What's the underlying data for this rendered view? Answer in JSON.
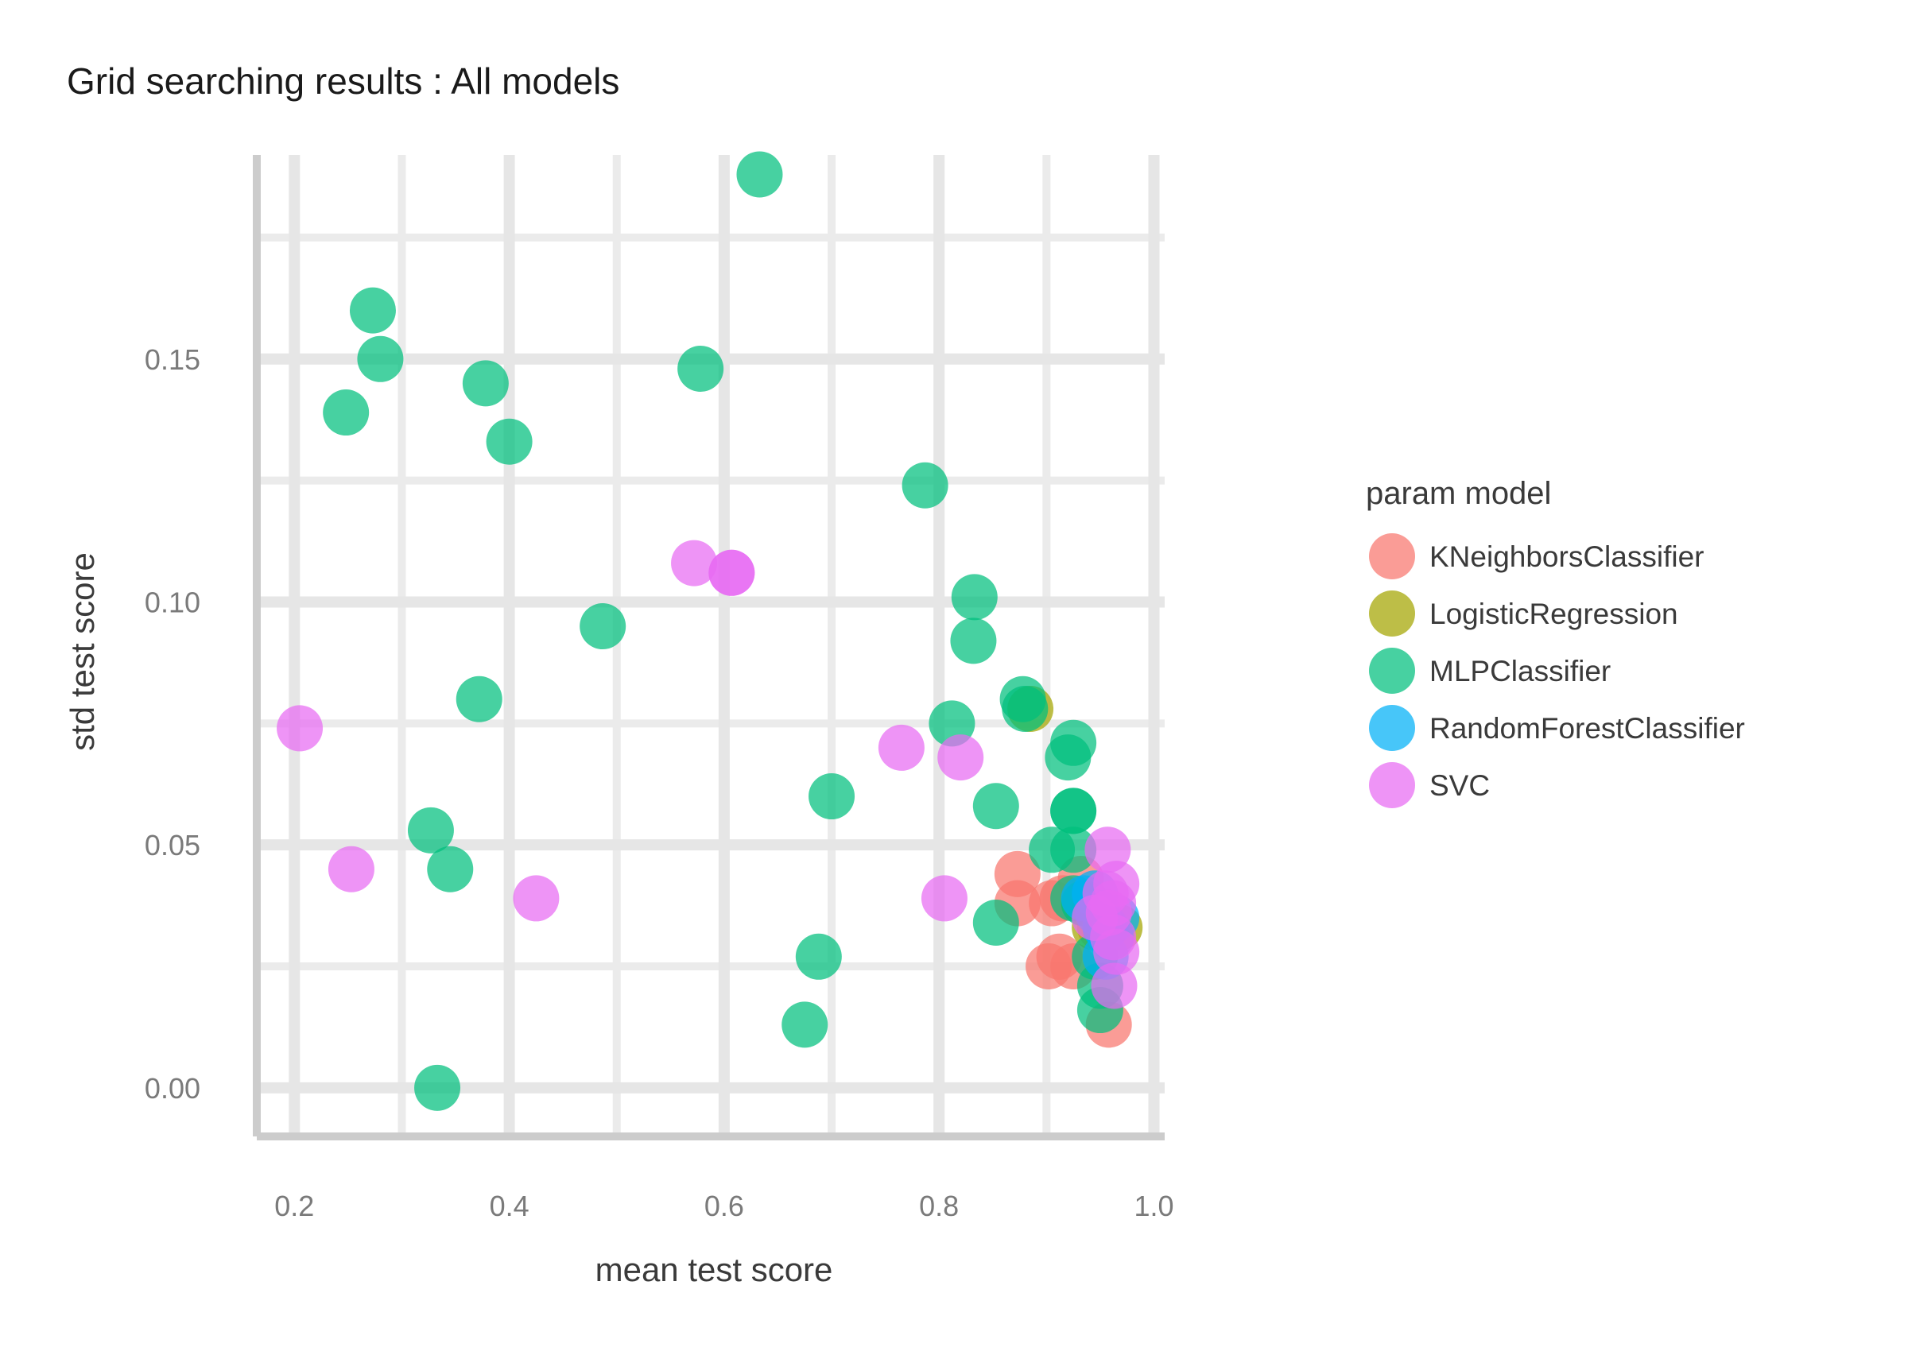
{
  "chart_data": {
    "type": "scatter",
    "title": "Grid searching results :  All models",
    "xlabel": "mean test score",
    "ylabel": "std test score",
    "xlim": [
      0.165,
      1.01
    ],
    "ylim": [
      -0.01,
      0.192
    ],
    "x_ticks": [
      0.2,
      0.4,
      0.6,
      0.8,
      1.0
    ],
    "x_tick_labels": [
      "0.2",
      "0.4",
      "0.6",
      "0.8",
      "1.0"
    ],
    "y_ticks": [
      0.0,
      0.05,
      0.1,
      0.15
    ],
    "y_tick_labels": [
      "0.00",
      "0.05",
      "0.10",
      "0.15"
    ],
    "grid": true,
    "legend": {
      "title": "param model",
      "position": "right"
    },
    "series": [
      {
        "name": "KNeighborsClassifier",
        "color": "#F8766D",
        "points": [
          [
            0.873,
            0.044
          ],
          [
            0.873,
            0.038
          ],
          [
            0.905,
            0.038
          ],
          [
            0.912,
            0.027
          ],
          [
            0.902,
            0.025
          ],
          [
            0.925,
            0.025
          ],
          [
            0.958,
            0.013
          ],
          [
            0.932,
            0.043
          ],
          [
            0.915,
            0.039
          ],
          [
            0.95,
            0.033
          ]
        ]
      },
      {
        "name": "LogisticRegression",
        "color": "#A3A500",
        "points": [
          [
            0.885,
            0.078
          ],
          [
            0.945,
            0.033
          ],
          [
            0.968,
            0.033
          ]
        ]
      },
      {
        "name": "MLPClassifier",
        "color": "#00BF7D",
        "points": [
          [
            0.633,
            0.188
          ],
          [
            0.273,
            0.16
          ],
          [
            0.28,
            0.15
          ],
          [
            0.378,
            0.145
          ],
          [
            0.248,
            0.139
          ],
          [
            0.578,
            0.148
          ],
          [
            0.4,
            0.133
          ],
          [
            0.787,
            0.124
          ],
          [
            0.833,
            0.101
          ],
          [
            0.832,
            0.092
          ],
          [
            0.487,
            0.095
          ],
          [
            0.878,
            0.08
          ],
          [
            0.88,
            0.078
          ],
          [
            0.372,
            0.08
          ],
          [
            0.812,
            0.075
          ],
          [
            0.925,
            0.071
          ],
          [
            0.92,
            0.068
          ],
          [
            0.7,
            0.06
          ],
          [
            0.853,
            0.058
          ],
          [
            0.925,
            0.057
          ],
          [
            0.925,
            0.057
          ],
          [
            0.327,
            0.053
          ],
          [
            0.345,
            0.045
          ],
          [
            0.905,
            0.049
          ],
          [
            0.925,
            0.049
          ],
          [
            0.925,
            0.039
          ],
          [
            0.935,
            0.038
          ],
          [
            0.853,
            0.034
          ],
          [
            0.955,
            0.033
          ],
          [
            0.688,
            0.027
          ],
          [
            0.945,
            0.027
          ],
          [
            0.95,
            0.021
          ],
          [
            0.95,
            0.016
          ],
          [
            0.675,
            0.013
          ],
          [
            0.333,
            0.0
          ]
        ]
      },
      {
        "name": "RandomForestClassifier",
        "color": "#00B0F6",
        "points": [
          [
            0.935,
            0.039
          ],
          [
            0.945,
            0.04
          ],
          [
            0.948,
            0.036
          ],
          [
            0.955,
            0.033
          ],
          [
            0.96,
            0.031
          ],
          [
            0.955,
            0.027
          ],
          [
            0.965,
            0.035
          ]
        ]
      },
      {
        "name": "SVC",
        "color": "#E76BF3",
        "points": [
          [
            0.205,
            0.074
          ],
          [
            0.253,
            0.045
          ],
          [
            0.425,
            0.039
          ],
          [
            0.572,
            0.108
          ],
          [
            0.607,
            0.106
          ],
          [
            0.607,
            0.106
          ],
          [
            0.765,
            0.07
          ],
          [
            0.82,
            0.068
          ],
          [
            0.805,
            0.039
          ],
          [
            0.957,
            0.049
          ],
          [
            0.965,
            0.042
          ],
          [
            0.962,
            0.038
          ],
          [
            0.955,
            0.04
          ],
          [
            0.945,
            0.035
          ],
          [
            0.962,
            0.031
          ],
          [
            0.965,
            0.028
          ],
          [
            0.963,
            0.021
          ],
          [
            0.958,
            0.036
          ]
        ]
      }
    ]
  }
}
